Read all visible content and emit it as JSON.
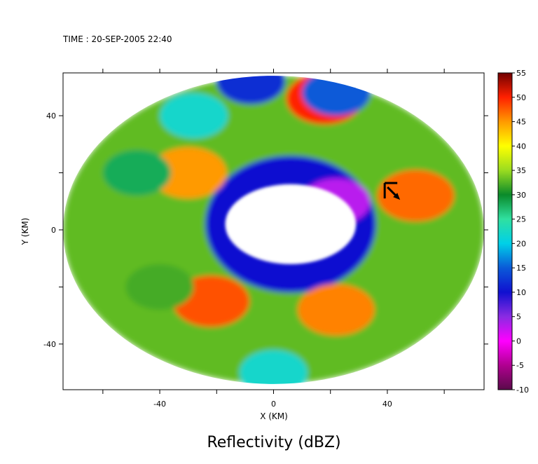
{
  "chart_data": {
    "type": "heatmap",
    "subtype": "radar-reflectivity-map",
    "time_label": "TIME : 20-SEP-2005 22:40",
    "title": "Reflectivity (dBZ)",
    "xlabel": "X (KM)",
    "ylabel": "Y (KM)",
    "xlim": [
      -74,
      74
    ],
    "ylim": [
      -56,
      55
    ],
    "x_ticks": [
      -40,
      0,
      40
    ],
    "y_ticks": [
      -40,
      0,
      40
    ],
    "grid": false,
    "colorbar": {
      "placement": "right",
      "min": -10,
      "max": 55,
      "ticks": [
        55,
        50,
        45,
        40,
        35,
        30,
        25,
        20,
        15,
        10,
        5,
        0,
        -5,
        -10
      ],
      "stops": [
        {
          "value": -10,
          "color": "#5a0a4a"
        },
        {
          "value": -5,
          "color": "#b00090"
        },
        {
          "value": 0,
          "color": "#ff00ff"
        },
        {
          "value": 5,
          "color": "#8a2be2"
        },
        {
          "value": 10,
          "color": "#1010d0"
        },
        {
          "value": 15,
          "color": "#0a5ad8"
        },
        {
          "value": 20,
          "color": "#00d0e8"
        },
        {
          "value": 25,
          "color": "#30e0a0"
        },
        {
          "value": 30,
          "color": "#0a8a2a"
        },
        {
          "value": 35,
          "color": "#9adc20"
        },
        {
          "value": 40,
          "color": "#ffff00"
        },
        {
          "value": 45,
          "color": "#ff9a00"
        },
        {
          "value": 50,
          "color": "#ff2000"
        },
        {
          "value": 55,
          "color": "#700000"
        }
      ]
    },
    "data_extent": {
      "shape": "ellipse",
      "center": [
        0,
        0
      ],
      "x_radius": 74,
      "y_radius": 54
    },
    "eye": {
      "center": [
        6,
        2
      ],
      "x_radius": 23,
      "y_radius": 14,
      "value": null
    },
    "features": [
      {
        "feature": "eyewall",
        "center": [
          6,
          2
        ],
        "x_radius": 30,
        "y_radius": 24,
        "dbz": 10
      },
      {
        "feature": "rainband",
        "x": 50,
        "y": 12,
        "dbz": 47
      },
      {
        "feature": "rainband",
        "x": 18,
        "y": 46,
        "dbz": 50
      },
      {
        "feature": "rainband",
        "x": -22,
        "y": -25,
        "dbz": 48
      },
      {
        "feature": "rainband",
        "x": 22,
        "y": -28,
        "dbz": 46
      },
      {
        "feature": "rainband",
        "x": -30,
        "y": 20,
        "dbz": 45
      },
      {
        "feature": "weak-echo",
        "x": -8,
        "y": 52,
        "dbz": 12
      },
      {
        "feature": "weak-echo",
        "x": 22,
        "y": 48,
        "dbz": 15
      },
      {
        "feature": "weak-echo",
        "x": 22,
        "y": 10,
        "dbz": 3
      },
      {
        "feature": "weak-echo",
        "x": -28,
        "y": 40,
        "dbz": 22
      },
      {
        "feature": "weak-echo",
        "x": 0,
        "y": -50,
        "dbz": 22
      },
      {
        "feature": "weak-echo",
        "x": -48,
        "y": 20,
        "dbz": 28
      },
      {
        "feature": "weak-echo",
        "x": -40,
        "y": -20,
        "dbz": 32
      }
    ],
    "annotations": [
      {
        "type": "storm-motion-arrow",
        "x": 44,
        "y": 12
      }
    ]
  }
}
